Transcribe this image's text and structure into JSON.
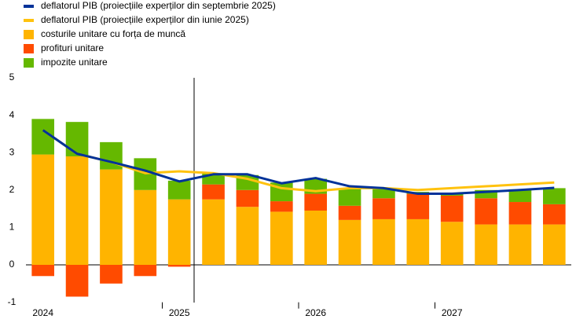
{
  "chart_data": {
    "type": "bar",
    "categories": [
      "2024",
      null,
      null,
      null,
      "2025",
      null,
      null,
      null,
      "2026",
      null,
      null,
      null,
      "2027",
      null,
      null,
      null
    ],
    "ylim": [
      -1,
      5
    ],
    "yticks": [
      -1,
      0,
      1,
      2,
      3,
      4,
      5
    ],
    "grid": false,
    "series": [
      {
        "name": "costurile unitare cu forța de muncă",
        "color": "#ffb400",
        "kind": "bar",
        "values": [
          2.95,
          2.9,
          2.55,
          2.0,
          1.75,
          1.75,
          1.55,
          1.42,
          1.45,
          1.2,
          1.22,
          1.22,
          1.15,
          1.08,
          1.08,
          1.08
        ]
      },
      {
        "name": "profituri unitare",
        "color": "#ff4b00",
        "kind": "bar",
        "values": [
          -0.3,
          -0.85,
          -0.5,
          -0.3,
          -0.05,
          0.4,
          0.45,
          0.28,
          0.45,
          0.38,
          0.56,
          0.68,
          0.7,
          0.7,
          0.6,
          0.54
        ]
      },
      {
        "name": "impozite unitare",
        "color": "#65b800",
        "kind": "bar",
        "values": [
          0.95,
          0.92,
          0.73,
          0.85,
          0.5,
          0.3,
          0.4,
          0.5,
          0.4,
          0.47,
          0.27,
          0.05,
          0.05,
          0.22,
          0.34,
          0.43
        ]
      },
      {
        "name": "deflatorul PIB (proiecțiile experților din iunie 2025)",
        "color": "#ffc20e",
        "kind": "line",
        "values": [
          3.6,
          2.97,
          2.75,
          2.45,
          2.5,
          2.45,
          2.3,
          2.05,
          1.97,
          2.05,
          2.05,
          2.0,
          2.05,
          2.1,
          2.15,
          2.2
        ]
      },
      {
        "name": "deflatorul PIB (proiecțiile experților din septembrie 2025)",
        "color": "#003299",
        "kind": "line",
        "values": [
          3.6,
          2.97,
          2.75,
          2.52,
          2.23,
          2.42,
          2.42,
          2.18,
          2.32,
          2.1,
          2.05,
          1.9,
          1.9,
          1.95,
          2.0,
          2.06
        ]
      }
    ],
    "legend_order": [
      4,
      3,
      0,
      1,
      2
    ]
  }
}
